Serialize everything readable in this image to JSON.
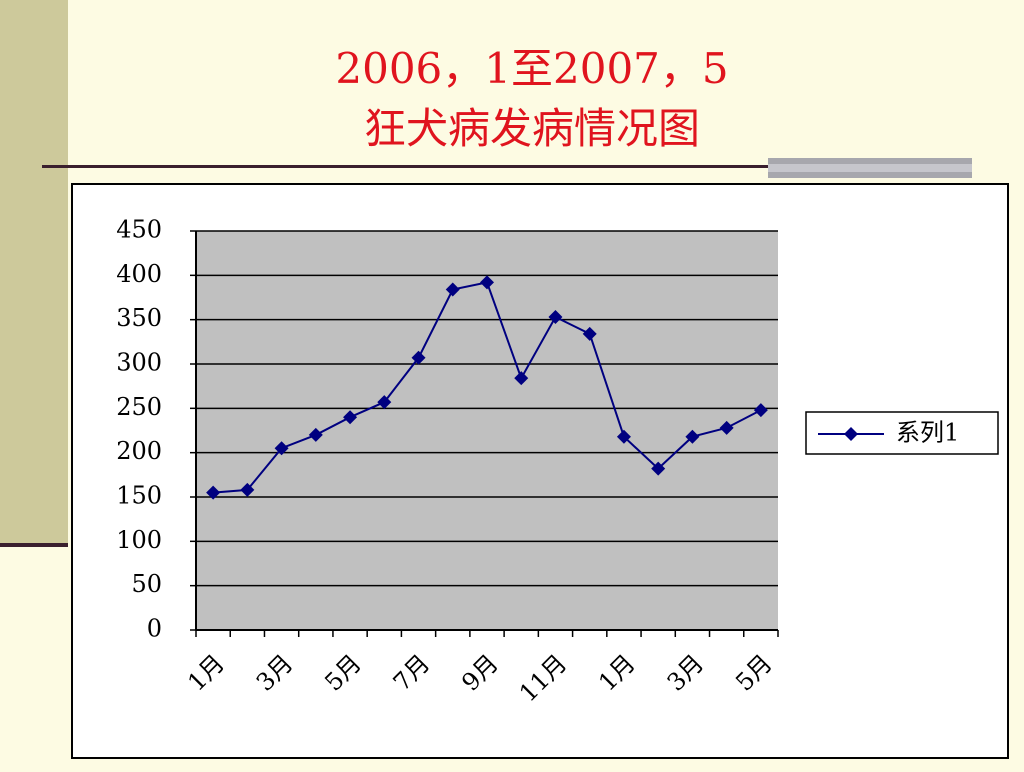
{
  "chart_data": {
    "type": "line",
    "title": [
      "2006，1至2007，5",
      "狂犬病发病情况图"
    ],
    "categories": [
      "1月",
      null,
      "3月",
      null,
      "5月",
      null,
      "7月",
      null,
      "9月",
      null,
      "11月",
      null,
      "1月",
      null,
      "3月",
      null,
      "5月"
    ],
    "series": [
      {
        "name": "系列1",
        "color": "#000080",
        "values": [
          155,
          158,
          205,
          220,
          240,
          257,
          307,
          384,
          392,
          284,
          353,
          334,
          218,
          182,
          218,
          228,
          248
        ]
      }
    ],
    "ylim": [
      0,
      450
    ],
    "yticks": [
      0,
      50,
      100,
      150,
      200,
      250,
      300,
      350,
      400,
      450
    ],
    "grid": true,
    "legend": "right"
  }
}
